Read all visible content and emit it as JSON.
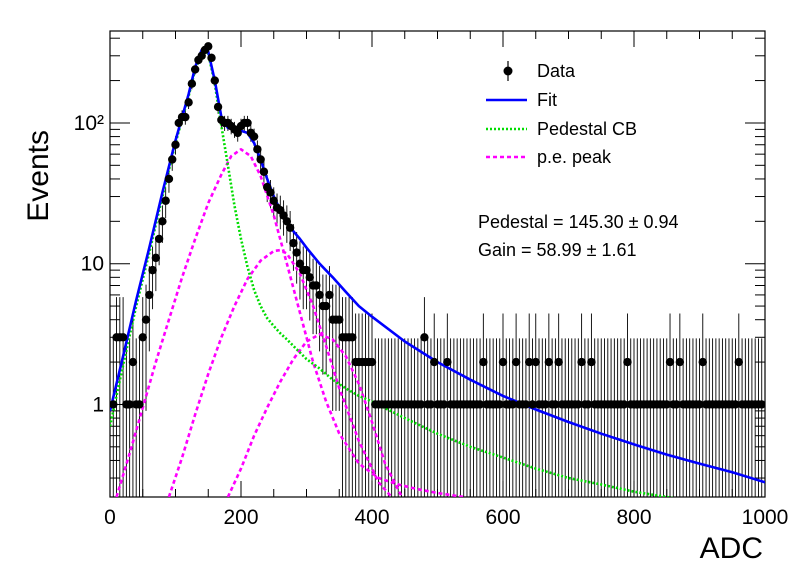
{
  "chart_data": {
    "type": "scatter",
    "xlabel": "ADC",
    "ylabel": "Events",
    "xlim": [
      0,
      1000
    ],
    "ylim": [
      0.22,
      450
    ],
    "yscale": "log",
    "grid": false,
    "legend_position": "top-right",
    "x_ticks": [
      "0",
      "200",
      "400",
      "600",
      "800",
      "1000"
    ],
    "y_ticks": [
      "1",
      "10",
      "10²"
    ],
    "legend": [
      {
        "key": "data",
        "label": "Data"
      },
      {
        "key": "fit",
        "label": "Fit"
      },
      {
        "key": "ped",
        "label": "Pedestal CB"
      },
      {
        "key": "pe",
        "label": "p.e. peak"
      }
    ],
    "annotations": {
      "pedestal": "Pedestal = 145.30 ± 0.94",
      "gain": "Gain = 58.99 ± 1.61"
    },
    "pedestal_value": 145.3,
    "gain_value": 58.99,
    "colors": {
      "data": "#000000",
      "fit": "#0000ff",
      "pedestal": "#00dd00",
      "pe_peak": "#ff00ff"
    },
    "data_points": {
      "x": [
        5,
        10,
        15,
        20,
        25,
        30,
        35,
        40,
        45,
        50,
        55,
        60,
        65,
        70,
        75,
        80,
        85,
        90,
        95,
        100,
        105,
        110,
        115,
        120,
        125,
        130,
        135,
        140,
        145,
        150,
        155,
        160,
        165,
        170,
        175,
        180,
        185,
        190,
        195,
        200,
        205,
        210,
        215,
        220,
        225,
        230,
        235,
        240,
        245,
        250,
        255,
        260,
        265,
        270,
        275,
        280,
        285,
        290,
        295,
        300,
        305,
        310,
        315,
        320,
        325,
        330,
        335,
        340,
        345,
        350,
        355,
        360,
        365,
        370,
        375,
        380,
        385,
        390,
        395,
        400,
        405,
        410,
        415,
        420,
        425,
        430,
        435,
        440,
        445,
        450,
        455,
        460,
        465,
        470,
        475,
        480,
        485,
        490,
        495,
        500,
        505,
        510,
        515,
        520,
        525,
        530,
        535,
        540,
        545,
        550,
        555,
        560,
        565,
        570,
        575,
        580,
        585,
        590,
        595,
        600,
        605,
        610,
        615,
        620,
        625,
        630,
        635,
        640,
        645,
        650,
        655,
        660,
        665,
        670,
        675,
        680,
        685,
        690,
        695,
        700,
        705,
        710,
        715,
        720,
        725,
        730,
        735,
        740,
        745,
        750,
        755,
        760,
        765,
        770,
        775,
        780,
        785,
        790,
        795,
        800,
        805,
        810,
        815,
        820,
        825,
        830,
        835,
        840,
        845,
        850,
        855,
        860,
        865,
        870,
        875,
        880,
        885,
        890,
        895,
        900,
        905,
        910,
        915,
        920,
        925,
        930,
        935,
        940,
        945,
        950,
        955,
        960,
        965,
        970,
        975,
        980,
        985,
        990,
        995
      ],
      "y": [
        1,
        3,
        3,
        3,
        1,
        1,
        2,
        1,
        1,
        3,
        4,
        6,
        9,
        11,
        15,
        20,
        28,
        40,
        55,
        70,
        100,
        110,
        110,
        140,
        190,
        240,
        280,
        300,
        330,
        350,
        290,
        200,
        130,
        105,
        100,
        100,
        95,
        90,
        85,
        95,
        100,
        100,
        85,
        80,
        65,
        55,
        45,
        35,
        32,
        28,
        25,
        24,
        22,
        20,
        18,
        14,
        12,
        10,
        9,
        9,
        8,
        7,
        7,
        6,
        5,
        5,
        6,
        4,
        4,
        4,
        3,
        3,
        3,
        3,
        2,
        2,
        2,
        2,
        2,
        2,
        1,
        1,
        1,
        1,
        1,
        1,
        1,
        1,
        1,
        1,
        1,
        1,
        1,
        1,
        1,
        3,
        1,
        1,
        2,
        1,
        1,
        1,
        2,
        1,
        1,
        1,
        1,
        1,
        1,
        1,
        1,
        1,
        1,
        2,
        1,
        1,
        1,
        1,
        1,
        2,
        1,
        1,
        1,
        2,
        1,
        1,
        1,
        2,
        1,
        2,
        1,
        1,
        1,
        2,
        1,
        1,
        2,
        1,
        1,
        1,
        1,
        1,
        1,
        2,
        1,
        1,
        2,
        1,
        1,
        1,
        1,
        1,
        1,
        1,
        1,
        1,
        1,
        2,
        1,
        1,
        1,
        1,
        1,
        1,
        1,
        1,
        1,
        1,
        1,
        1,
        2,
        1,
        1,
        2,
        1,
        1,
        1,
        1,
        1,
        1,
        2,
        1,
        1,
        1,
        1,
        1,
        1,
        1,
        1,
        1,
        1,
        2,
        1,
        1,
        1,
        1,
        1,
        1,
        1
      ]
    },
    "series": [
      {
        "key": "fit",
        "name": "Fit",
        "x": [
          0,
          20,
          40,
          60,
          80,
          100,
          120,
          130,
          140,
          145,
          150,
          160,
          170,
          180,
          190,
          200,
          210,
          220,
          230,
          240,
          250,
          260,
          270,
          280,
          290,
          300,
          320,
          340,
          360,
          380,
          400,
          450,
          500,
          550,
          600,
          650,
          700,
          750,
          800,
          850,
          900,
          950,
          1000
        ],
        "y": [
          0.9,
          2.2,
          5.5,
          13,
          32,
          75,
          160,
          250,
          330,
          345,
          320,
          200,
          110,
          92,
          90,
          88,
          85,
          72,
          55,
          40,
          30,
          24,
          20,
          17,
          15,
          13,
          10,
          8,
          6.3,
          5,
          4.2,
          2.8,
          2,
          1.5,
          1.15,
          0.92,
          0.75,
          0.62,
          0.52,
          0.44,
          0.38,
          0.33,
          0.28
        ]
      },
      {
        "key": "ped",
        "name": "Pedestal CB",
        "x": [
          0,
          20,
          40,
          60,
          80,
          100,
          120,
          130,
          140,
          145,
          150,
          160,
          170,
          180,
          190,
          200,
          210,
          220,
          230,
          240,
          250,
          260,
          270,
          280,
          300,
          320,
          340,
          360,
          380,
          400,
          450,
          500,
          550,
          600,
          650,
          700,
          750,
          800,
          850,
          900
        ],
        "y": [
          0.7,
          1.9,
          5,
          12,
          30,
          72,
          155,
          240,
          320,
          340,
          310,
          190,
          95,
          50,
          26,
          15,
          9.5,
          6.5,
          5,
          4.1,
          3.6,
          3.2,
          2.9,
          2.6,
          2.1,
          1.8,
          1.5,
          1.3,
          1.15,
          1.05,
          0.8,
          0.62,
          0.5,
          0.42,
          0.35,
          0.3,
          0.27,
          0.24,
          0.22,
          0.2
        ]
      },
      {
        "key": "pe1",
        "name": "p.e. peak",
        "x": [
          10,
          30,
          50,
          70,
          90,
          110,
          130,
          150,
          170,
          185,
          200,
          215,
          230,
          250,
          270,
          290,
          310,
          330,
          350,
          380,
          410,
          440,
          470,
          500,
          540
        ],
        "y": [
          0.22,
          0.45,
          0.95,
          2,
          4,
          8,
          15,
          27,
          43,
          58,
          65,
          58,
          42,
          22,
          10,
          4.5,
          2,
          1.05,
          0.62,
          0.38,
          0.3,
          0.27,
          0.25,
          0.235,
          0.22
        ]
      },
      {
        "key": "pe2",
        "name": "p.e. peak",
        "x": [
          90,
          110,
          130,
          150,
          170,
          190,
          210,
          230,
          250,
          260,
          270,
          290,
          310,
          330,
          350,
          380,
          410,
          430
        ],
        "y": [
          0.22,
          0.42,
          0.85,
          1.65,
          3,
          5,
          7.8,
          10.5,
          12.3,
          12.5,
          11.8,
          8.5,
          5,
          2.6,
          1.3,
          0.55,
          0.28,
          0.22
        ]
      },
      {
        "key": "pe3",
        "name": "p.e. peak",
        "x": [
          180,
          200,
          220,
          240,
          260,
          280,
          300,
          320,
          340,
          360,
          380,
          400,
          420,
          450
        ],
        "y": [
          0.22,
          0.35,
          0.6,
          0.95,
          1.45,
          2.1,
          2.8,
          3.15,
          2.9,
          2.2,
          1.4,
          0.75,
          0.38,
          0.2
        ]
      }
    ]
  }
}
